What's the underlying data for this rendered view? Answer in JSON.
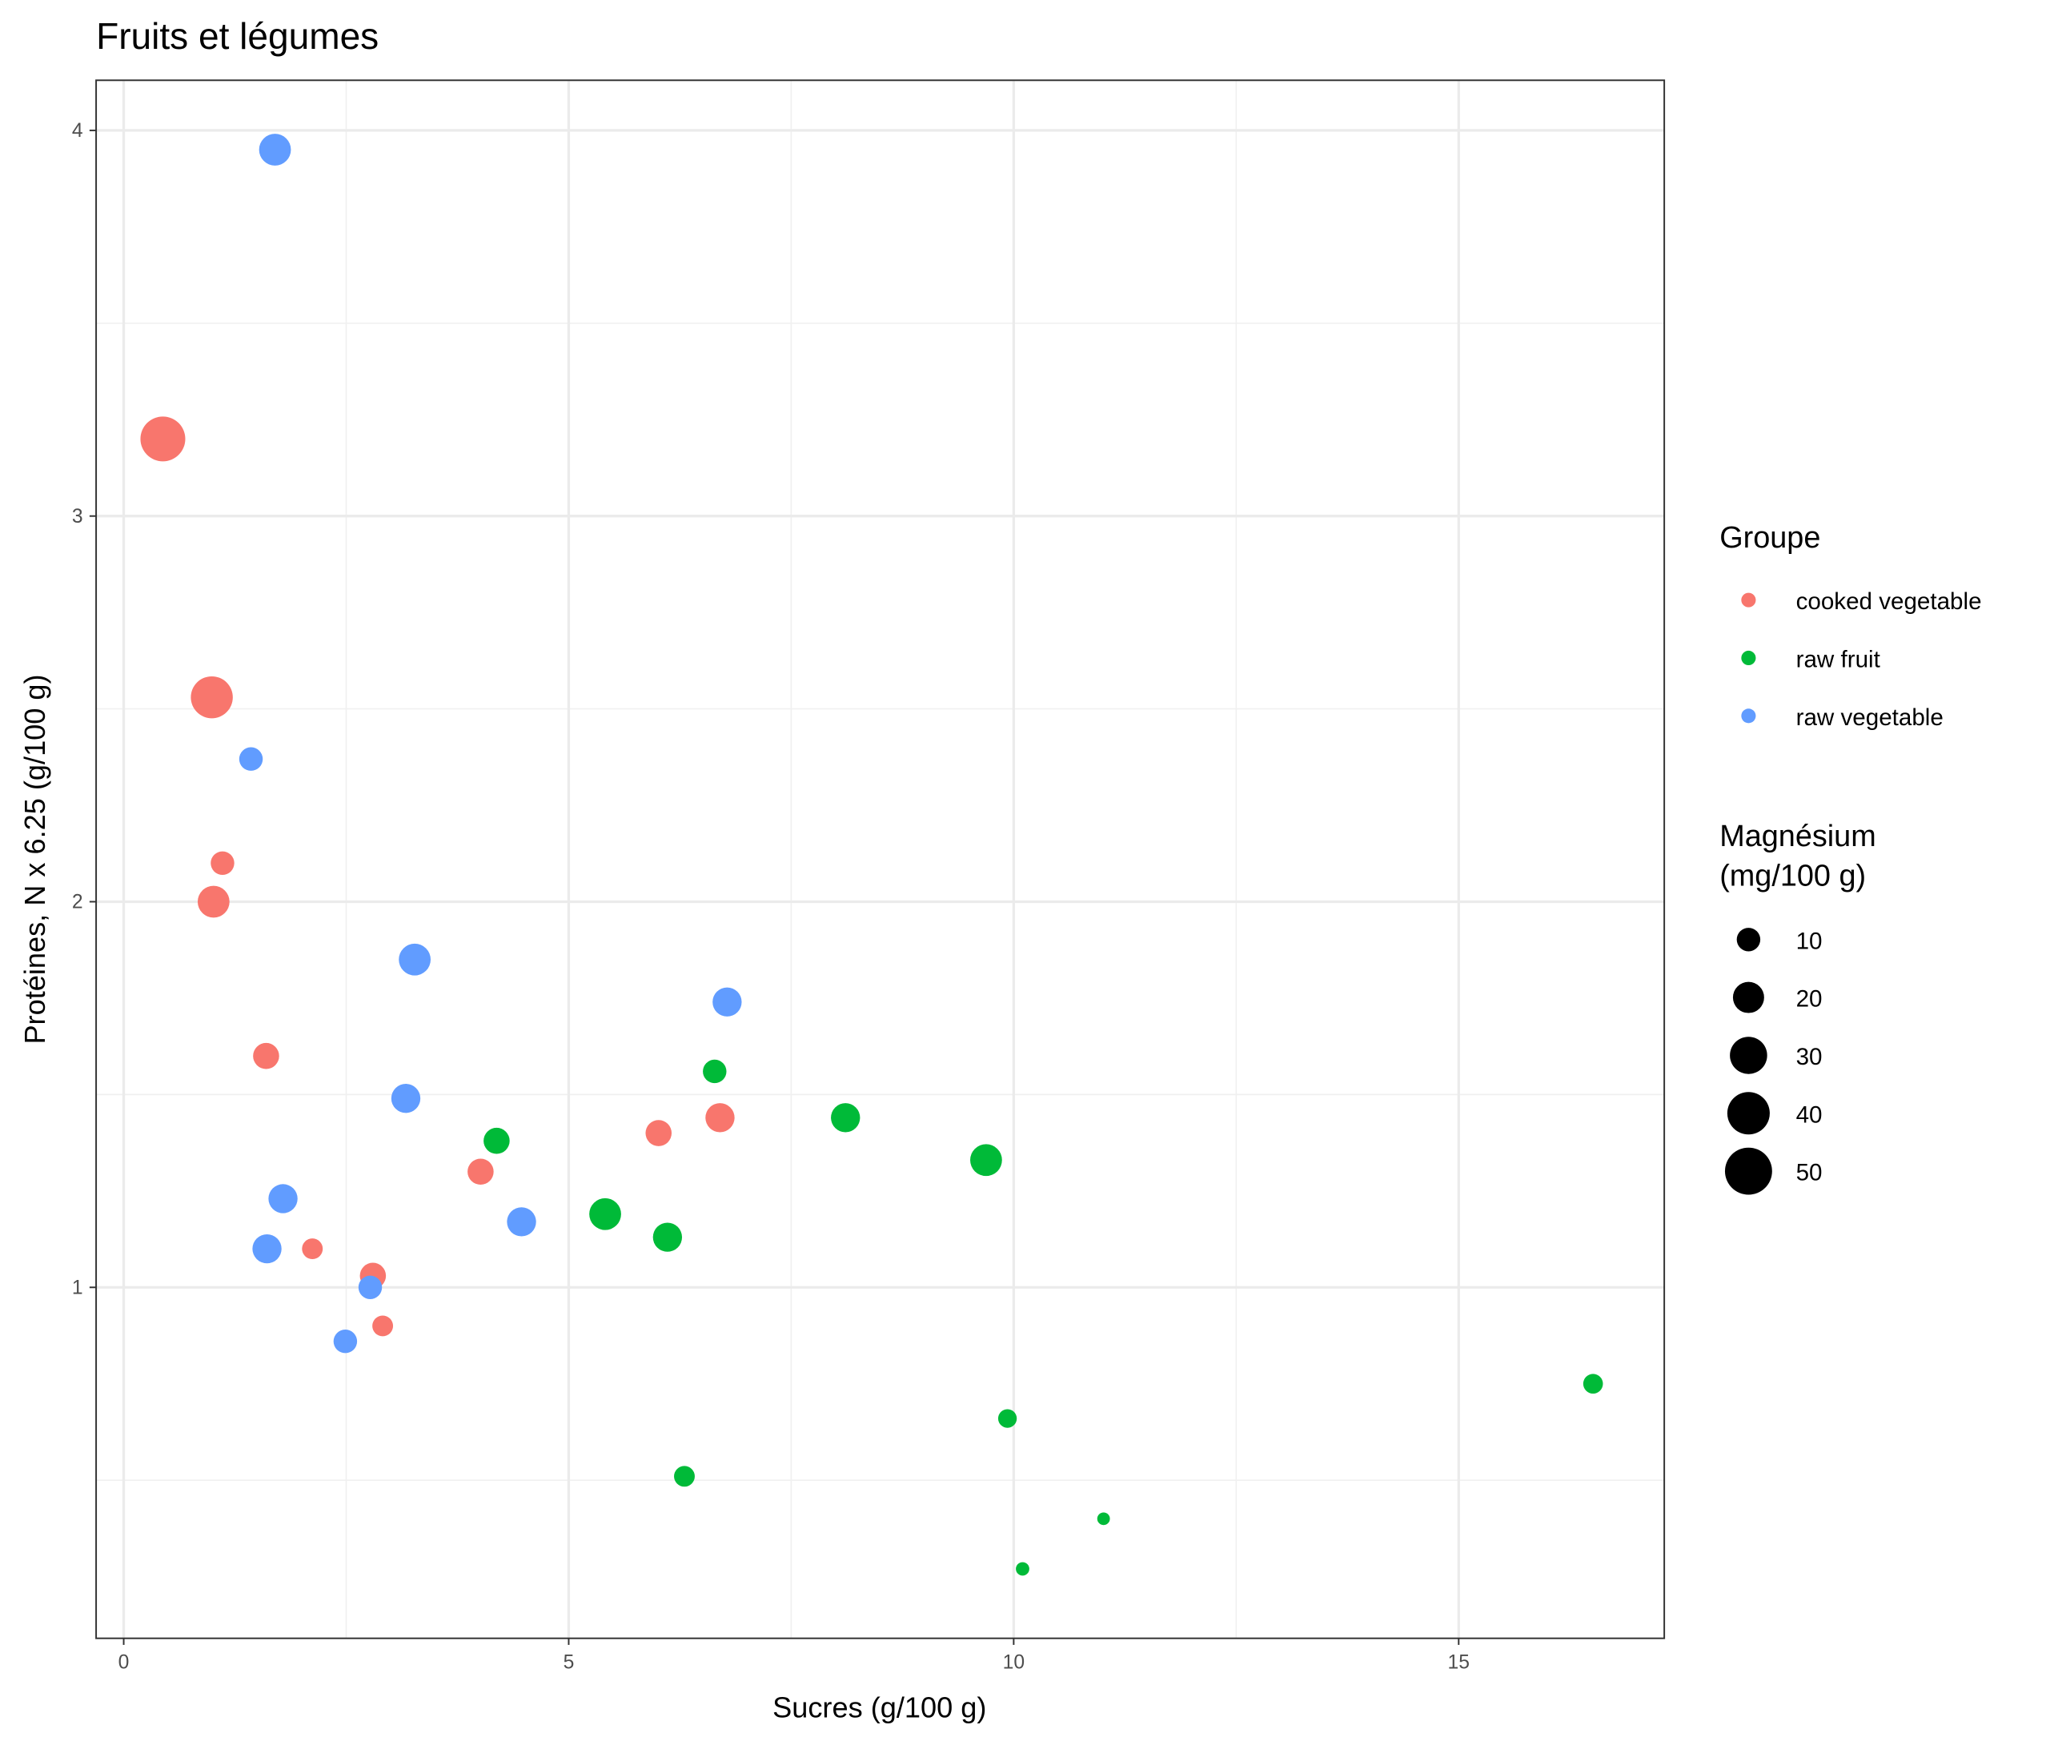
{
  "chart_data": {
    "type": "scatter",
    "title": "Fruits et légumes",
    "xlabel": "Sucres (g/100 g)",
    "ylabel": "Protéines, N x 6.25 (g/100 g)",
    "xlim": [
      -0.31,
      17.31
    ],
    "ylim": [
      0.09,
      4.13
    ],
    "xticks": [
      0,
      5,
      10,
      15
    ],
    "xtick_labels": [
      "0",
      "5",
      "10",
      "15"
    ],
    "yticks": [
      1,
      2,
      3,
      4
    ],
    "ytick_labels": [
      "1",
      "2",
      "3",
      "4"
    ],
    "grid": true,
    "legend_color": {
      "title": "Groupe",
      "placement": "right",
      "entries": [
        {
          "label": "cooked vegetable",
          "color": "#F8766D"
        },
        {
          "label": "raw fruit",
          "color": "#00BA38"
        },
        {
          "label": "raw vegetable",
          "color": "#619CFF"
        }
      ]
    },
    "legend_size": {
      "title_line1": "Magnésium",
      "title_line2": "(mg/100 g)",
      "values": [
        10,
        20,
        30,
        40,
        50
      ],
      "labels": [
        "10",
        "20",
        "30",
        "40",
        "50"
      ]
    },
    "series": [
      {
        "name": "cooked vegetable",
        "color": "#F8766D",
        "points": [
          {
            "x": 0.44,
            "y": 3.2,
            "size": 45
          },
          {
            "x": 0.99,
            "y": 2.53,
            "size": 39
          },
          {
            "x": 1.11,
            "y": 2.1,
            "size": 10
          },
          {
            "x": 1.01,
            "y": 2.0,
            "size": 21
          },
          {
            "x": 1.6,
            "y": 1.6,
            "size": 13
          },
          {
            "x": 4.01,
            "y": 1.3,
            "size": 13
          },
          {
            "x": 6.01,
            "y": 1.4,
            "size": 13
          },
          {
            "x": 6.7,
            "y": 1.44,
            "size": 17
          },
          {
            "x": 2.12,
            "y": 1.1,
            "size": 7
          },
          {
            "x": 2.8,
            "y": 1.03,
            "size": 13
          },
          {
            "x": 2.91,
            "y": 0.9,
            "size": 7
          }
        ]
      },
      {
        "name": "raw fruit",
        "color": "#00BA38",
        "points": [
          {
            "x": 6.64,
            "y": 1.56,
            "size": 10
          },
          {
            "x": 4.19,
            "y": 1.38,
            "size": 13
          },
          {
            "x": 8.11,
            "y": 1.44,
            "size": 17
          },
          {
            "x": 9.69,
            "y": 1.33,
            "size": 21
          },
          {
            "x": 5.41,
            "y": 1.19,
            "size": 21
          },
          {
            "x": 6.11,
            "y": 1.13,
            "size": 17
          },
          {
            "x": 16.51,
            "y": 0.75,
            "size": 6
          },
          {
            "x": 9.93,
            "y": 0.66,
            "size": 5
          },
          {
            "x": 6.3,
            "y": 0.51,
            "size": 7
          },
          {
            "x": 11.01,
            "y": 0.4,
            "size": 0.5
          },
          {
            "x": 10.1,
            "y": 0.27,
            "size": 1
          }
        ]
      },
      {
        "name": "raw vegetable",
        "color": "#619CFF",
        "points": [
          {
            "x": 1.7,
            "y": 3.95,
            "size": 21
          },
          {
            "x": 1.43,
            "y": 2.37,
            "size": 10
          },
          {
            "x": 3.27,
            "y": 1.85,
            "size": 21
          },
          {
            "x": 6.78,
            "y": 1.74,
            "size": 17
          },
          {
            "x": 3.17,
            "y": 1.49,
            "size": 17
          },
          {
            "x": 1.79,
            "y": 1.23,
            "size": 17
          },
          {
            "x": 1.61,
            "y": 1.1,
            "size": 17
          },
          {
            "x": 4.47,
            "y": 1.17,
            "size": 17
          },
          {
            "x": 2.77,
            "y": 1.0,
            "size": 10
          },
          {
            "x": 2.49,
            "y": 0.86,
            "size": 10
          }
        ]
      }
    ]
  }
}
